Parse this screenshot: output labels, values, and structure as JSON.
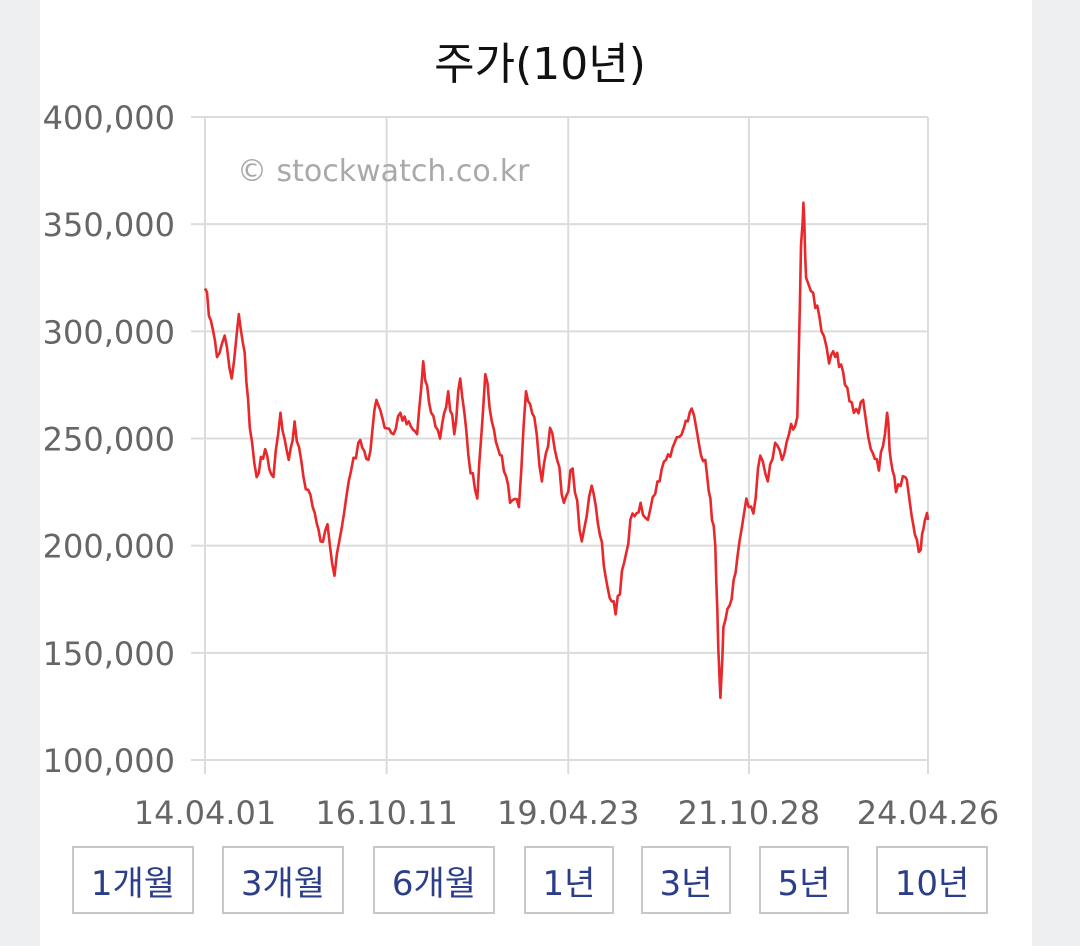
{
  "chart_data": {
    "type": "line",
    "title": "주가(10년)",
    "watermark": "© stockwatch.co.kr",
    "xlabel": "",
    "ylabel": "",
    "ylim": [
      100000,
      400000
    ],
    "yticks": [
      100000,
      150000,
      200000,
      250000,
      300000,
      350000,
      400000
    ],
    "ytick_labels": [
      "100,000",
      "150,000",
      "200,000",
      "250,000",
      "300,000",
      "350,000",
      "400,000"
    ],
    "x_date_range": [
      "2014-04-01",
      "2024-04-26"
    ],
    "xticks": [
      "2014-04-01",
      "2016-10-11",
      "2019-04-23",
      "2021-10-28",
      "2024-04-26"
    ],
    "xtick_labels": [
      "14.04.01",
      "16.10.11",
      "19.04.23",
      "21.10.28",
      "24.04.26"
    ],
    "grid": true,
    "line_color": "#e8282b",
    "series": [
      {
        "name": "",
        "points": [
          [
            "2014-04-01",
            320000
          ],
          [
            "2014-05-01",
            305000
          ],
          [
            "2014-06-01",
            288000
          ],
          [
            "2014-07-10",
            298000
          ],
          [
            "2014-08-15",
            278000
          ],
          [
            "2014-09-20",
            308000
          ],
          [
            "2014-10-20",
            290000
          ],
          [
            "2014-11-15",
            255000
          ],
          [
            "2014-12-20",
            232000
          ],
          [
            "2015-02-01",
            245000
          ],
          [
            "2015-03-15",
            232000
          ],
          [
            "2015-04-20",
            262000
          ],
          [
            "2015-06-01",
            240000
          ],
          [
            "2015-07-01",
            258000
          ],
          [
            "2015-08-15",
            232000
          ],
          [
            "2015-10-01",
            218000
          ],
          [
            "2015-11-10",
            202000
          ],
          [
            "2015-12-15",
            210000
          ],
          [
            "2016-01-20",
            186000
          ],
          [
            "2016-02-25",
            208000
          ],
          [
            "2016-04-01",
            230000
          ],
          [
            "2016-05-20",
            248000
          ],
          [
            "2016-07-10",
            240000
          ],
          [
            "2016-08-20",
            268000
          ],
          [
            "2016-10-01",
            255000
          ],
          [
            "2016-11-15",
            252000
          ],
          [
            "2016-12-20",
            262000
          ],
          [
            "2017-02-01",
            258000
          ],
          [
            "2017-03-15",
            252000
          ],
          [
            "2017-04-15",
            286000
          ],
          [
            "2017-05-25",
            262000
          ],
          [
            "2017-07-10",
            250000
          ],
          [
            "2017-08-20",
            272000
          ],
          [
            "2017-09-20",
            252000
          ],
          [
            "2017-10-20",
            278000
          ],
          [
            "2017-12-01",
            242000
          ],
          [
            "2018-01-15",
            222000
          ],
          [
            "2018-02-25",
            280000
          ],
          [
            "2018-04-10",
            254000
          ],
          [
            "2018-05-20",
            242000
          ],
          [
            "2018-07-01",
            220000
          ],
          [
            "2018-08-15",
            218000
          ],
          [
            "2018-09-20",
            272000
          ],
          [
            "2018-11-01",
            260000
          ],
          [
            "2018-12-10",
            230000
          ],
          [
            "2019-01-20",
            255000
          ],
          [
            "2019-02-25",
            240000
          ],
          [
            "2019-04-01",
            220000
          ],
          [
            "2019-05-15",
            236000
          ],
          [
            "2019-07-01",
            202000
          ],
          [
            "2019-08-20",
            228000
          ],
          [
            "2019-10-01",
            205000
          ],
          [
            "2019-11-10",
            180000
          ],
          [
            "2019-12-20",
            168000
          ],
          [
            "2020-02-01",
            192000
          ],
          [
            "2020-03-15",
            215000
          ],
          [
            "2020-04-25",
            220000
          ],
          [
            "2020-06-01",
            212000
          ],
          [
            "2020-07-20",
            230000
          ],
          [
            "2020-09-01",
            240000
          ],
          [
            "2020-10-15",
            248000
          ],
          [
            "2020-12-01",
            255000
          ],
          [
            "2021-01-10",
            264000
          ],
          [
            "2021-02-15",
            248000
          ],
          [
            "2021-03-20",
            240000
          ],
          [
            "2021-04-15",
            222000
          ],
          [
            "2021-05-10",
            200000
          ],
          [
            "2021-05-25",
            152000
          ],
          [
            "2021-06-05",
            129000
          ],
          [
            "2021-06-20",
            162000
          ],
          [
            "2021-08-01",
            175000
          ],
          [
            "2021-09-10",
            202000
          ],
          [
            "2021-10-15",
            222000
          ],
          [
            "2021-11-20",
            215000
          ],
          [
            "2021-12-25",
            242000
          ],
          [
            "2022-02-01",
            230000
          ],
          [
            "2022-03-10",
            248000
          ],
          [
            "2022-04-15",
            240000
          ],
          [
            "2022-05-20",
            252000
          ],
          [
            "2022-07-01",
            260000
          ],
          [
            "2022-07-20",
            340000
          ],
          [
            "2022-08-01",
            360000
          ],
          [
            "2022-08-15",
            325000
          ],
          [
            "2022-09-20",
            318000
          ],
          [
            "2022-11-01",
            300000
          ],
          [
            "2022-12-10",
            285000
          ],
          [
            "2023-01-20",
            290000
          ],
          [
            "2023-03-01",
            275000
          ],
          [
            "2023-04-15",
            262000
          ],
          [
            "2023-06-01",
            268000
          ],
          [
            "2023-07-10",
            245000
          ],
          [
            "2023-08-20",
            235000
          ],
          [
            "2023-10-01",
            262000
          ],
          [
            "2023-10-20",
            240000
          ],
          [
            "2023-11-15",
            225000
          ],
          [
            "2024-01-01",
            232000
          ],
          [
            "2024-01-25",
            220000
          ],
          [
            "2024-02-20",
            205000
          ],
          [
            "2024-03-20",
            198000
          ],
          [
            "2024-04-10",
            212000
          ],
          [
            "2024-04-26",
            212000
          ]
        ]
      }
    ]
  },
  "range_buttons": [
    "1개월",
    "3개월",
    "6개월",
    "1년",
    "3년",
    "5년",
    "10년"
  ]
}
